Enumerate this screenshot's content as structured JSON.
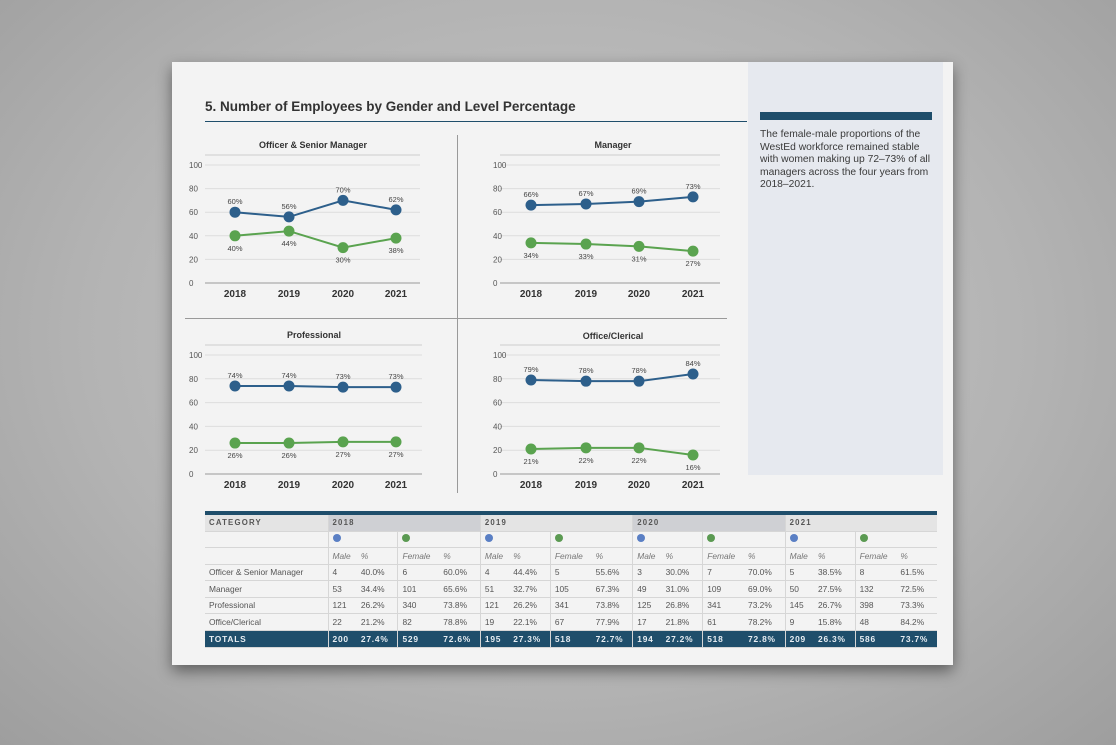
{
  "page": {
    "title": "5. Number of Employees by Gender and Level Percentage",
    "sidebar_text": "The female-male proportions of the WestEd workforce remained stable with women making up 72–73% of all managers across the four years from 2018–2021."
  },
  "colors": {
    "blue": "#2d5f8b",
    "green": "#5aa34f",
    "dark": "#1f4e6b",
    "table_blue_dot": "#5a7fc4",
    "table_green_dot": "#5b9a52"
  },
  "chart_data": [
    {
      "type": "line",
      "title": "Officer & Senior Manager",
      "categories": [
        "2018",
        "2019",
        "2020",
        "2021"
      ],
      "ylim": [
        0,
        100
      ],
      "yticks": [
        0,
        20,
        40,
        60,
        80,
        100
      ],
      "grid": true,
      "series": [
        {
          "color": "#2d5f8b",
          "values": [
            60,
            56,
            70,
            62
          ],
          "labels": [
            "60%",
            "56%",
            "70%",
            "62%"
          ]
        },
        {
          "color": "#5aa34f",
          "values": [
            40,
            44,
            30,
            38
          ],
          "labels": [
            "40%",
            "44%",
            "30%",
            "38%"
          ]
        }
      ]
    },
    {
      "type": "line",
      "title": "Manager",
      "categories": [
        "2018",
        "2019",
        "2020",
        "2021"
      ],
      "ylim": [
        0,
        100
      ],
      "yticks": [
        0,
        20,
        40,
        60,
        80,
        100
      ],
      "grid": true,
      "series": [
        {
          "color": "#2d5f8b",
          "values": [
            66,
            67,
            69,
            73
          ],
          "labels": [
            "66%",
            "67%",
            "69%",
            "73%"
          ]
        },
        {
          "color": "#5aa34f",
          "values": [
            34,
            33,
            31,
            27
          ],
          "labels": [
            "34%",
            "33%",
            "31%",
            "27%"
          ]
        }
      ]
    },
    {
      "type": "line",
      "title": "Professional",
      "categories": [
        "2018",
        "2019",
        "2020",
        "2021"
      ],
      "ylim": [
        0,
        100
      ],
      "yticks": [
        0,
        20,
        40,
        60,
        80,
        100
      ],
      "grid": true,
      "series": [
        {
          "color": "#2d5f8b",
          "values": [
            74,
            74,
            73,
            73
          ],
          "labels": [
            "74%",
            "74%",
            "73%",
            "73%"
          ]
        },
        {
          "color": "#5aa34f",
          "values": [
            26,
            26,
            27,
            27
          ],
          "labels": [
            "26%",
            "26%",
            "27%",
            "27%"
          ]
        }
      ]
    },
    {
      "type": "line",
      "title": "Office/Clerical",
      "categories": [
        "2018",
        "2019",
        "2020",
        "2021"
      ],
      "ylim": [
        0,
        100
      ],
      "yticks": [
        0,
        20,
        40,
        60,
        80,
        100
      ],
      "grid": true,
      "series": [
        {
          "color": "#2d5f8b",
          "values": [
            79,
            78,
            78,
            84
          ],
          "labels": [
            "79%",
            "78%",
            "78%",
            "84%"
          ]
        },
        {
          "color": "#5aa34f",
          "values": [
            21,
            22,
            22,
            16
          ],
          "labels": [
            "21%",
            "22%",
            "22%",
            "16%"
          ]
        }
      ]
    }
  ],
  "table": {
    "category_header": "CATEGORY",
    "years": [
      "2018",
      "2019",
      "2020",
      "2021"
    ],
    "sub_headers": [
      "Male",
      "%",
      "Female",
      "%"
    ],
    "rows": [
      {
        "label": "Officer & Senior Manager",
        "cells": [
          "4",
          "40.0%",
          "6",
          "60.0%",
          "4",
          "44.4%",
          "5",
          "55.6%",
          "3",
          "30.0%",
          "7",
          "70.0%",
          "5",
          "38.5%",
          "8",
          "61.5%"
        ]
      },
      {
        "label": "Manager",
        "cells": [
          "53",
          "34.4%",
          "101",
          "65.6%",
          "51",
          "32.7%",
          "105",
          "67.3%",
          "49",
          "31.0%",
          "109",
          "69.0%",
          "50",
          "27.5%",
          "132",
          "72.5%"
        ]
      },
      {
        "label": "Professional",
        "cells": [
          "121",
          "26.2%",
          "340",
          "73.8%",
          "121",
          "26.2%",
          "341",
          "73.8%",
          "125",
          "26.8%",
          "341",
          "73.2%",
          "145",
          "26.7%",
          "398",
          "73.3%"
        ]
      },
      {
        "label": "Office/Clerical",
        "cells": [
          "22",
          "21.2%",
          "82",
          "78.8%",
          "19",
          "22.1%",
          "67",
          "77.9%",
          "17",
          "21.8%",
          "61",
          "78.2%",
          "9",
          "15.8%",
          "48",
          "84.2%"
        ]
      }
    ],
    "totals": {
      "label": "TOTALS",
      "cells": [
        "200",
        "27.4%",
        "529",
        "72.6%",
        "195",
        "27.3%",
        "518",
        "72.7%",
        "194",
        "27.2%",
        "518",
        "72.8%",
        "209",
        "26.3%",
        "586",
        "73.7%"
      ]
    }
  }
}
